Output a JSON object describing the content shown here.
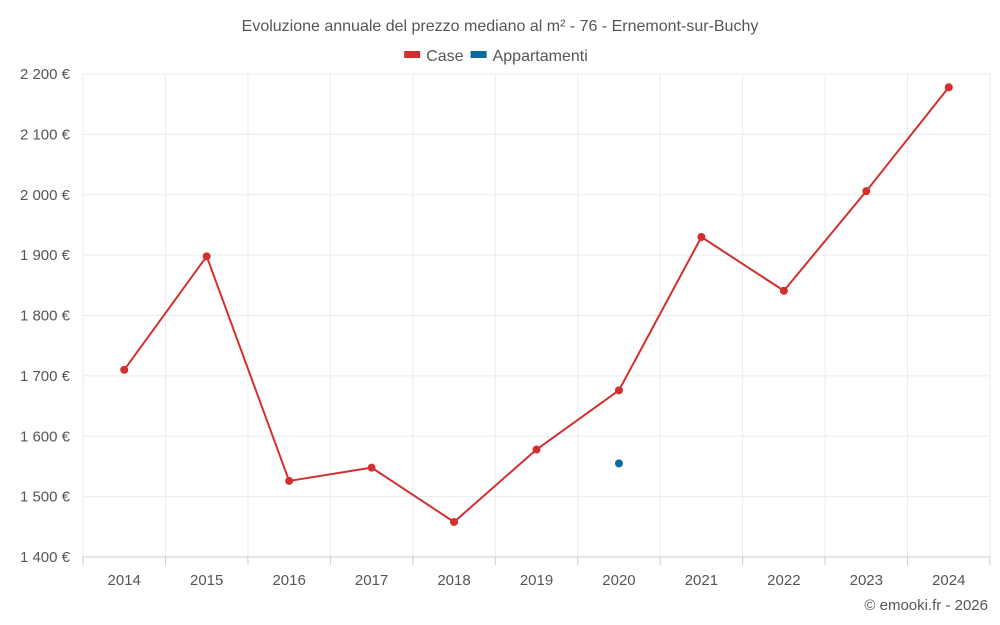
{
  "chart_data": {
    "type": "line",
    "title": "Evoluzione annuale del prezzo mediano al m² - 76 - Ernemont-sur-Buchy",
    "categories": [
      "2014",
      "2015",
      "2016",
      "2017",
      "2018",
      "2019",
      "2020",
      "2021",
      "2022",
      "2023",
      "2024"
    ],
    "series": [
      {
        "name": "Case",
        "color": "#d32f2f",
        "values": [
          1710,
          1898,
          1526,
          1548,
          1458,
          1578,
          1676,
          1930,
          1841,
          2006,
          2178
        ]
      },
      {
        "name": "Appartamenti",
        "color": "#0b6aa2",
        "values": [
          null,
          null,
          null,
          null,
          null,
          null,
          1555,
          null,
          null,
          null,
          null
        ]
      }
    ],
    "ylim": [
      1400,
      2200
    ],
    "yticks": [
      1400,
      1500,
      1600,
      1700,
      1800,
      1900,
      2000,
      2100,
      2200
    ],
    "ytick_labels": [
      "1 400 €",
      "1 500 €",
      "1 600 €",
      "1 700 €",
      "1 800 €",
      "1 900 €",
      "2 000 €",
      "2 100 €",
      "2 200 €"
    ],
    "xlabel": "",
    "ylabel": "",
    "grid": true,
    "legend_position": "top-center"
  },
  "credit": "© emooki.fr - 2026"
}
